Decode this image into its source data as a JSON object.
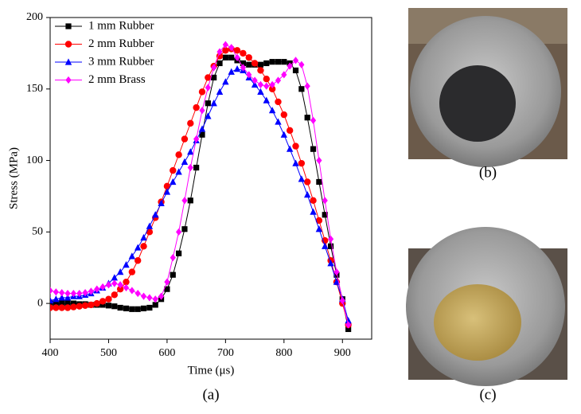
{
  "chart_data": {
    "type": "line",
    "xlabel": "Time (μs)",
    "ylabel": "Stress (MPa)",
    "panel_label": "(a)",
    "xlim": [
      400,
      950
    ],
    "ylim": [
      -25,
      200
    ],
    "xticks": [
      400,
      500,
      600,
      700,
      800,
      900
    ],
    "yticks": [
      0,
      50,
      100,
      150,
      200
    ],
    "legend": "upper-left",
    "x": [
      400,
      410,
      420,
      430,
      440,
      450,
      460,
      470,
      480,
      490,
      500,
      510,
      520,
      530,
      540,
      550,
      560,
      570,
      580,
      590,
      600,
      610,
      620,
      630,
      640,
      650,
      660,
      670,
      680,
      690,
      700,
      710,
      720,
      730,
      740,
      750,
      760,
      770,
      780,
      790,
      800,
      810,
      820,
      830,
      840,
      850,
      860,
      870,
      880,
      890,
      900,
      910
    ],
    "series": [
      {
        "name": "1 mm Rubber",
        "color": "#000000",
        "marker": "square",
        "values": [
          0,
          0,
          0,
          0,
          0,
          -0.5,
          -0.5,
          -1,
          -1,
          -1,
          -1.5,
          -2,
          -3,
          -3.5,
          -4,
          -4,
          -3.5,
          -3,
          -1,
          3,
          10,
          20,
          35,
          52,
          72,
          95,
          118,
          140,
          158,
          168,
          172,
          172,
          170,
          168,
          167,
          167,
          167,
          168,
          169,
          169,
          169,
          168,
          163,
          150,
          130,
          108,
          85,
          62,
          40,
          20,
          3,
          -18
        ]
      },
      {
        "name": "2 mm Rubber",
        "color": "#ff0000",
        "marker": "circle",
        "values": [
          -3,
          -3,
          -3,
          -3,
          -2.5,
          -2,
          -1.5,
          -1,
          0,
          1.5,
          3,
          6,
          10,
          15,
          22,
          30,
          40,
          50,
          60,
          71,
          82,
          93,
          104,
          115,
          126,
          137,
          148,
          158,
          166,
          173,
          177,
          178,
          177,
          175,
          172,
          168,
          163,
          157,
          150,
          141,
          132,
          121,
          110,
          98,
          85,
          72,
          58,
          44,
          30,
          15,
          0,
          -15
        ]
      },
      {
        "name": "3 mm Rubber",
        "color": "#0000ff",
        "marker": "triangle",
        "values": [
          2,
          3,
          4,
          4,
          5,
          5,
          6,
          7,
          9,
          11,
          14,
          18,
          22,
          27,
          33,
          39,
          46,
          54,
          62,
          70,
          78,
          85,
          92,
          99,
          106,
          114,
          122,
          131,
          140,
          148,
          155,
          162,
          164,
          163,
          158,
          153,
          148,
          142,
          135,
          127,
          118,
          108,
          98,
          87,
          76,
          64,
          52,
          40,
          28,
          15,
          3,
          -12
        ]
      },
      {
        "name": "2 mm Brass",
        "color": "#ff00ff",
        "marker": "diamond",
        "values": [
          9,
          8,
          7.5,
          7,
          7,
          7,
          7.5,
          8.5,
          10,
          11.5,
          13,
          14,
          13,
          11,
          9,
          7,
          5,
          4,
          3,
          5,
          15,
          32,
          50,
          72,
          95,
          115,
          135,
          151,
          165,
          176,
          181,
          179,
          172,
          165,
          160,
          156,
          153,
          152,
          153,
          156,
          160,
          166,
          170,
          167,
          152,
          128,
          100,
          72,
          45,
          22,
          2,
          -15
        ]
      }
    ]
  },
  "photos": [
    {
      "label": "(b)"
    },
    {
      "label": "(c)"
    }
  ]
}
